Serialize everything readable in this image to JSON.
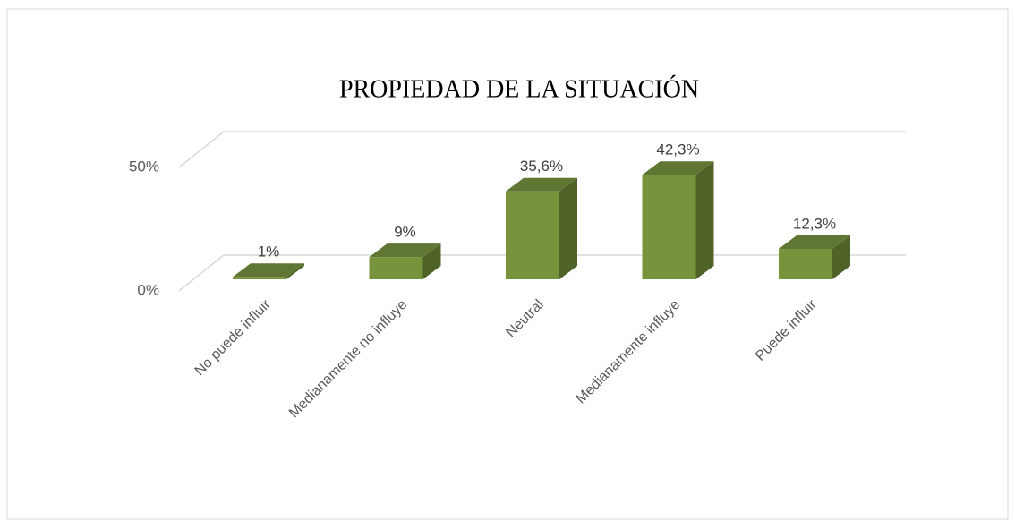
{
  "chart_data": {
    "type": "bar3d",
    "title": "PROPIEDAD DE LA SITUACIÓN",
    "categories": [
      "No puede influir",
      "Medianamente no influye",
      "Neutral",
      "Medianamente influye",
      "Puede influir"
    ],
    "values": [
      1,
      9,
      35.6,
      42.3,
      12.3
    ],
    "value_labels": [
      "1%",
      "9%",
      "35,6%",
      "42,3%",
      "12,3%"
    ],
    "color": "#77933c",
    "ylim": [
      0,
      50
    ],
    "yticks": [
      {
        "value": 0,
        "label": "0%"
      },
      {
        "value": 50,
        "label": "50%"
      }
    ],
    "grid": true
  }
}
